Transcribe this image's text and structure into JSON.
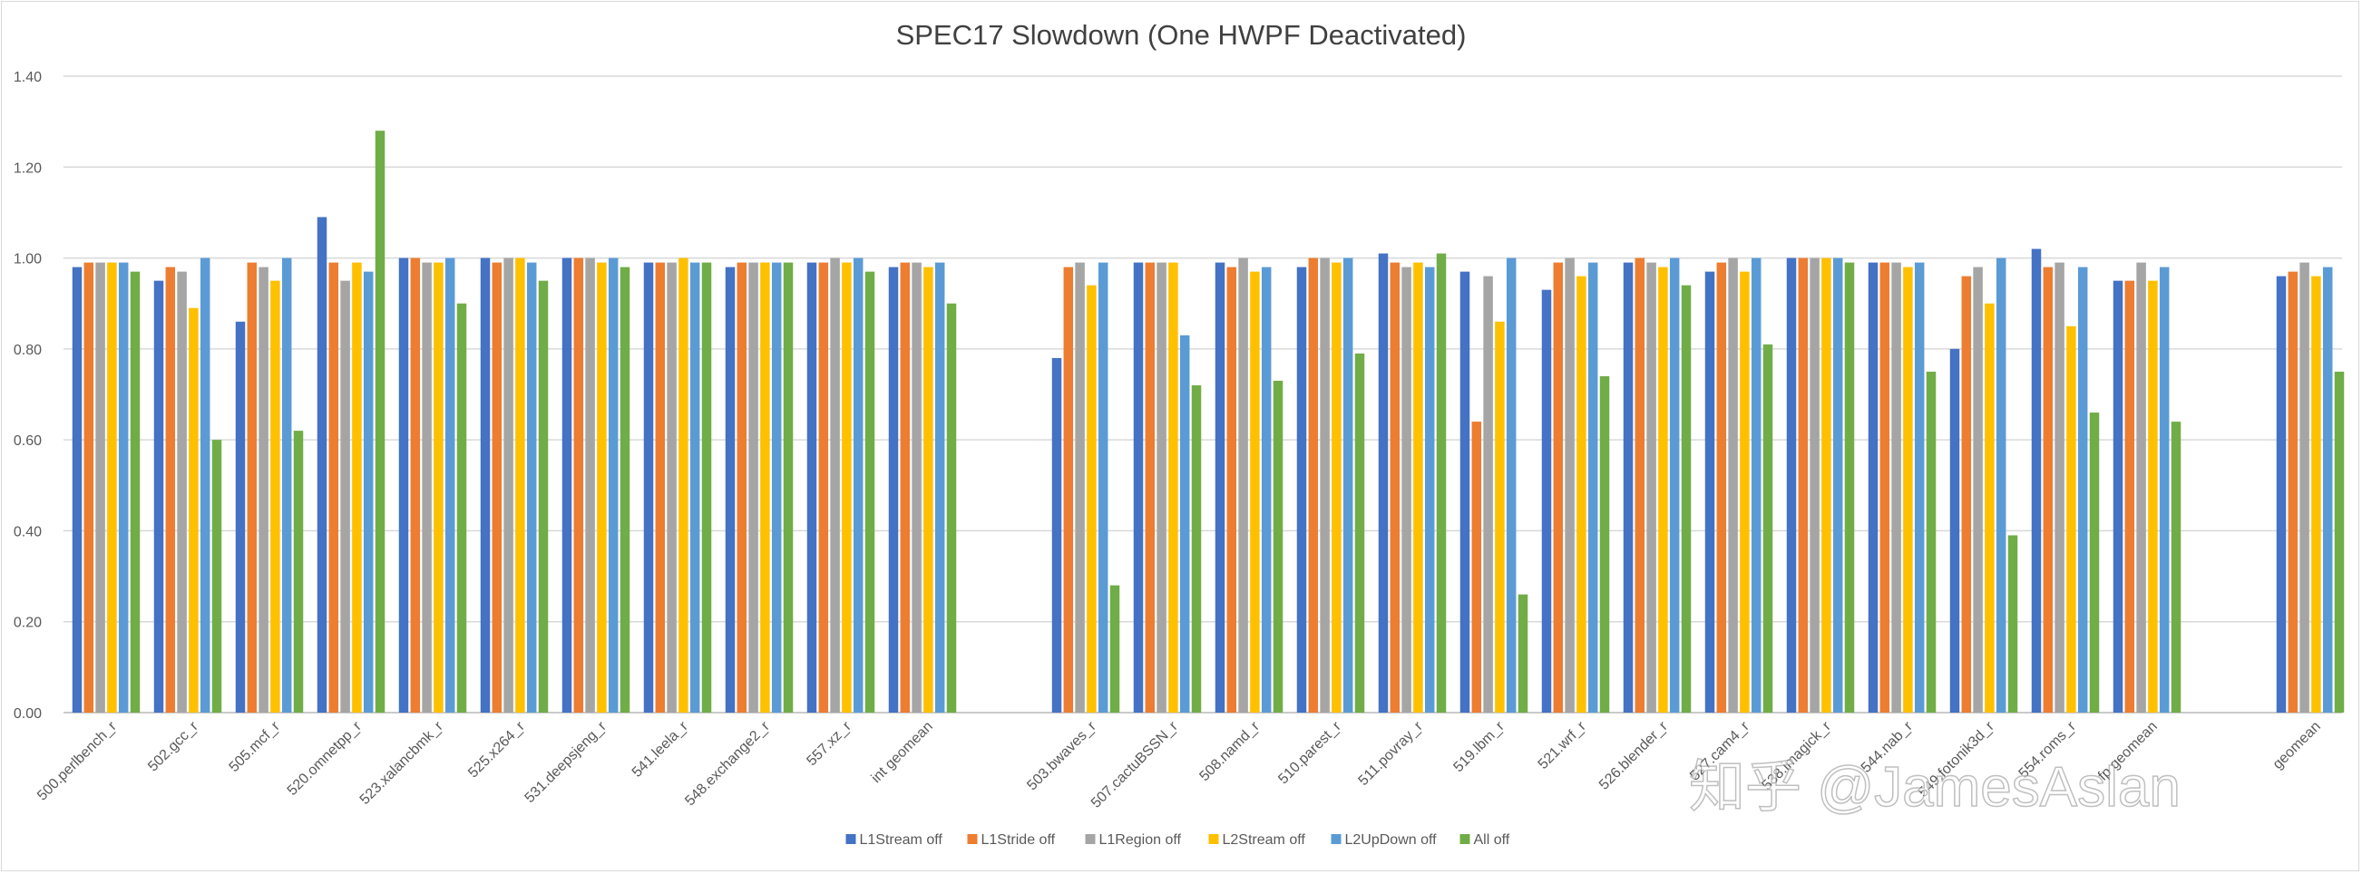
{
  "chart_data": {
    "type": "bar",
    "title": "SPEC17 Slowdown (One HWPF Deactivated)",
    "xlabel": "",
    "ylabel": "",
    "ylim": [
      0,
      1.4
    ],
    "yticks": [
      "0.00",
      "0.20",
      "0.40",
      "0.60",
      "0.80",
      "1.00",
      "1.20",
      "1.40"
    ],
    "grid": true,
    "legend_position": "bottom",
    "categories": [
      "500.perlbench_r",
      "502.gcc_r",
      "505.mcf_r",
      "520.omnetpp_r",
      "523.xalancbmk_r",
      "525.x264_r",
      "531.deepsjeng_r",
      "541.leela_r",
      "548.exchange2_r",
      "557.xz_r",
      "int geomean",
      "503.bwaves_r",
      "507.cactuBSSN_r",
      "508.namd_r",
      "510.parest_r",
      "511.povray_r",
      "519.lbm_r",
      "521.wrf_r",
      "526.blender_r",
      "527.cam4_r",
      "538.imagick_r",
      "544.nab_r",
      "549.fotonik3d_r",
      "554.roms_r",
      "fp geomean",
      "geomean"
    ],
    "series": [
      {
        "name": "L1Stream off",
        "color": "#4472C4",
        "values": [
          0.98,
          0.95,
          0.86,
          1.09,
          1.0,
          1.0,
          1.0,
          0.99,
          0.98,
          0.99,
          0.98,
          0.78,
          0.99,
          0.99,
          0.98,
          1.01,
          0.97,
          0.93,
          0.99,
          0.97,
          1.0,
          0.99,
          0.8,
          1.02,
          0.95,
          0.96
        ]
      },
      {
        "name": "L1Stride off",
        "color": "#ED7D31",
        "values": [
          0.99,
          0.98,
          0.99,
          0.99,
          1.0,
          0.99,
          1.0,
          0.99,
          0.99,
          0.99,
          0.99,
          0.98,
          0.99,
          0.98,
          1.0,
          0.99,
          0.64,
          0.99,
          1.0,
          0.99,
          1.0,
          0.99,
          0.96,
          0.98,
          0.95,
          0.97
        ]
      },
      {
        "name": "L1Region off",
        "color": "#A5A5A5",
        "values": [
          0.99,
          0.97,
          0.98,
          0.95,
          0.99,
          1.0,
          1.0,
          0.99,
          0.99,
          1.0,
          0.99,
          0.99,
          0.99,
          1.0,
          1.0,
          0.98,
          0.96,
          1.0,
          0.99,
          1.0,
          1.0,
          0.99,
          0.98,
          0.99,
          0.99,
          0.99
        ]
      },
      {
        "name": "L2Stream off",
        "color": "#FFC000",
        "values": [
          0.99,
          0.89,
          0.95,
          0.99,
          0.99,
          1.0,
          0.99,
          1.0,
          0.99,
          0.99,
          0.98,
          0.94,
          0.99,
          0.97,
          0.99,
          0.99,
          0.86,
          0.96,
          0.98,
          0.97,
          1.0,
          0.98,
          0.9,
          0.85,
          0.95,
          0.96
        ]
      },
      {
        "name": "L2UpDown off",
        "color": "#5B9BD5",
        "values": [
          0.99,
          1.0,
          1.0,
          0.97,
          1.0,
          0.99,
          1.0,
          0.99,
          0.99,
          1.0,
          0.99,
          0.99,
          0.83,
          0.98,
          1.0,
          0.98,
          1.0,
          0.99,
          1.0,
          1.0,
          1.0,
          0.99,
          1.0,
          0.98,
          0.98,
          0.98
        ]
      },
      {
        "name": "All off",
        "color": "#70AD47",
        "values": [
          0.97,
          0.6,
          0.62,
          1.28,
          0.9,
          0.95,
          0.98,
          0.99,
          0.99,
          0.97,
          0.9,
          0.28,
          0.72,
          0.73,
          0.79,
          1.01,
          0.26,
          0.74,
          0.94,
          0.81,
          0.99,
          0.75,
          0.39,
          0.66,
          0.64,
          0.75
        ]
      }
    ]
  },
  "watermark": {
    "text": "知乎 @JamesAslan"
  }
}
